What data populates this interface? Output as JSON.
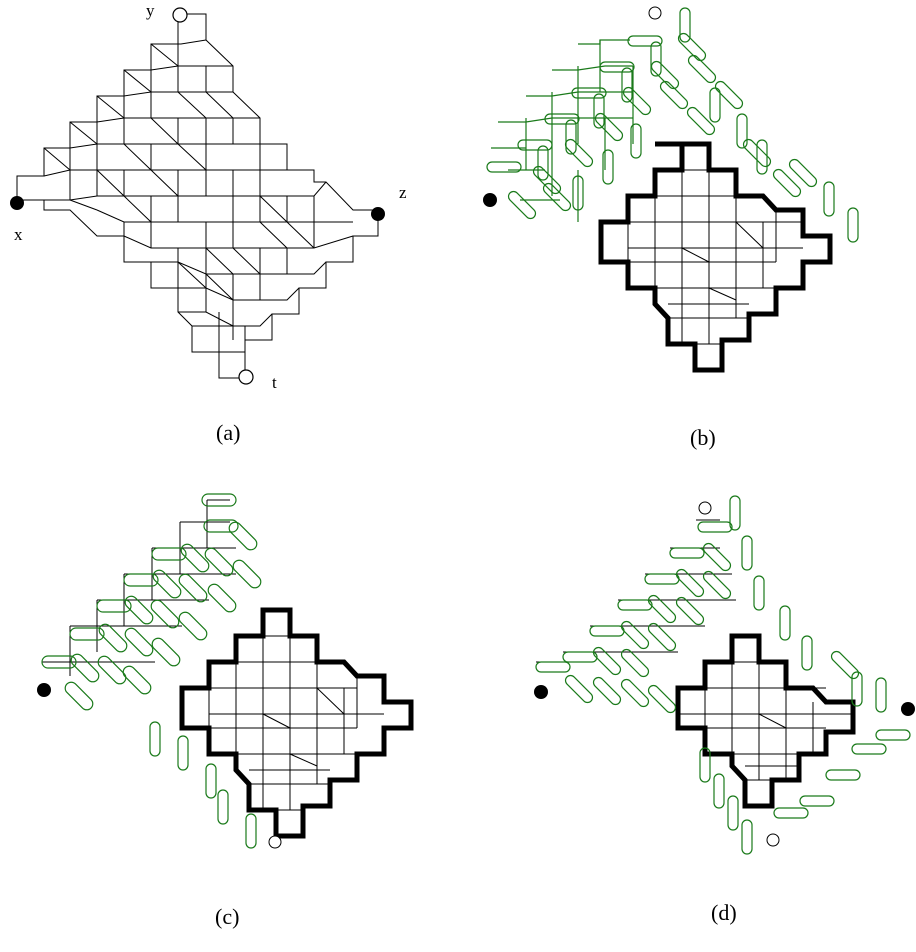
{
  "panels": [
    {
      "caption": "(a)",
      "points": [
        {
          "label": "y",
          "kind": "open"
        },
        {
          "label": "x",
          "kind": "filled"
        },
        {
          "label": "z",
          "kind": "filled"
        },
        {
          "label": "t",
          "kind": "open"
        }
      ]
    },
    {
      "caption": "(b)"
    },
    {
      "caption": "(c)"
    },
    {
      "caption": "(d)"
    }
  ],
  "colors": {
    "grid": "#000000",
    "dimer": "#1a7a1a",
    "boundary": "#000000"
  }
}
